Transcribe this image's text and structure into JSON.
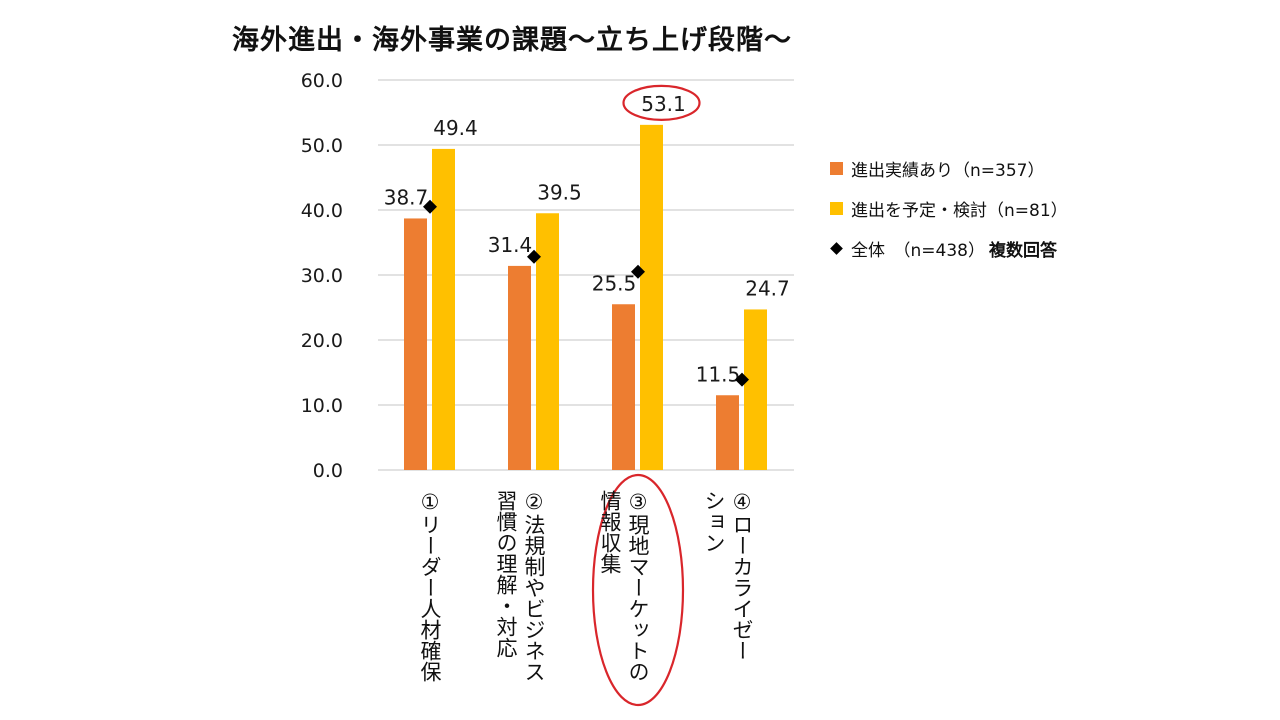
{
  "title": "海外進出・海外事業の課題～立ち上げ段階～",
  "colors": {
    "series1": "#ED7D31",
    "series2": "#FFC000",
    "overall": "#000000",
    "highlight": "#D9262B",
    "grid": "#D9D9D9"
  },
  "legend": {
    "series1": "進出実績あり（n=357）",
    "series2": "進出を予定・検討（n=81）",
    "overall": "全体　（n=438）",
    "note": "複数回答"
  },
  "categories": [
    {
      "lines": [
        "①リーダー人材確保"
      ]
    },
    {
      "lines": [
        "②法規制やビジネス",
        "習慣の理解・対応"
      ]
    },
    {
      "lines": [
        "③現地マーケットの",
        "情報収集"
      ]
    },
    {
      "lines": [
        "④ローカライゼー",
        "ション"
      ]
    }
  ],
  "chart_data": {
    "type": "bar",
    "title": "海外進出・海外事業の課題～立ち上げ段階～",
    "categories": [
      "①リーダー人材確保",
      "②法規制やビジネス習慣の理解・対応",
      "③現地マーケットの情報収集",
      "④ローカライゼーション"
    ],
    "series": [
      {
        "name": "進出実績あり（n=357）",
        "values": [
          38.7,
          31.4,
          25.5,
          11.5
        ],
        "labels": [
          "38.7",
          "31.4",
          "25.5",
          "11.5"
        ]
      },
      {
        "name": "進出を予定・検討（n=81）",
        "values": [
          49.4,
          39.5,
          53.1,
          24.7
        ],
        "labels": [
          "49.4",
          "39.5",
          "53.1",
          "24.7"
        ]
      },
      {
        "name": "全体　（n=438）",
        "type": "scatter",
        "marker": "diamond",
        "values": [
          40.5,
          32.8,
          30.5,
          13.9
        ]
      }
    ],
    "highlight_category": 2,
    "ylim": [
      0,
      60
    ],
    "yticks": [
      "0.0",
      "10.0",
      "20.0",
      "30.0",
      "40.0",
      "50.0",
      "60.0"
    ],
    "grid": true,
    "legend_position": "right",
    "note": "複数回答"
  }
}
